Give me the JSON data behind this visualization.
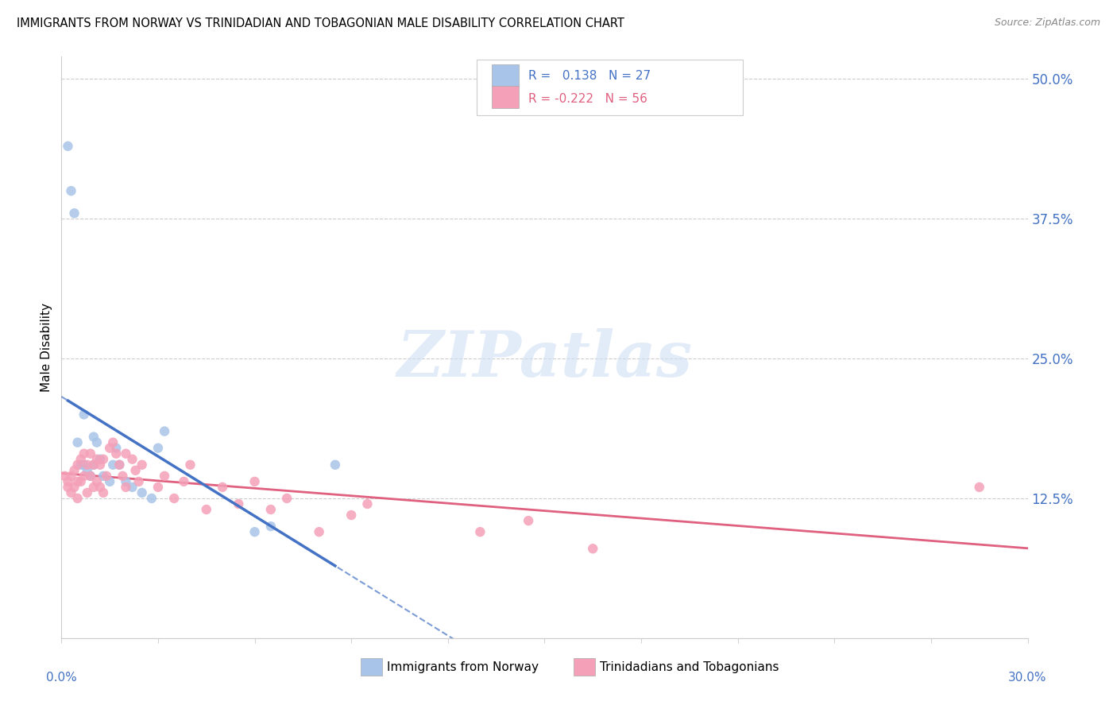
{
  "title": "IMMIGRANTS FROM NORWAY VS TRINIDADIAN AND TOBAGONIAN MALE DISABILITY CORRELATION CHART",
  "source": "Source: ZipAtlas.com",
  "ylabel": "Male Disability",
  "xlim": [
    0.0,
    0.3
  ],
  "ylim": [
    0.0,
    0.52
  ],
  "norway_color": "#a8c4e8",
  "norway_line_color": "#4472c4",
  "trinidad_color": "#f4a0b8",
  "trinidad_line_color": "#e06080",
  "norway_R": 0.138,
  "norway_N": 27,
  "trinidad_R": -0.222,
  "trinidad_N": 56,
  "watermark_text": "ZIPatlas",
  "right_yticks": [
    0.0,
    0.125,
    0.25,
    0.375,
    0.5
  ],
  "right_yticklabels": [
    "",
    "12.5%",
    "25.0%",
    "37.5%",
    "50.0%"
  ],
  "norway_x": [
    0.002,
    0.003,
    0.004,
    0.005,
    0.006,
    0.007,
    0.007,
    0.008,
    0.009,
    0.01,
    0.01,
    0.011,
    0.012,
    0.013,
    0.015,
    0.016,
    0.017,
    0.018,
    0.02,
    0.022,
    0.025,
    0.028,
    0.03,
    0.032,
    0.06,
    0.065,
    0.085
  ],
  "norway_y": [
    0.44,
    0.4,
    0.38,
    0.175,
    0.155,
    0.2,
    0.155,
    0.15,
    0.145,
    0.18,
    0.155,
    0.175,
    0.16,
    0.145,
    0.14,
    0.155,
    0.17,
    0.155,
    0.14,
    0.135,
    0.13,
    0.125,
    0.17,
    0.185,
    0.095,
    0.1,
    0.155
  ],
  "trinidad_x": [
    0.001,
    0.002,
    0.002,
    0.003,
    0.003,
    0.004,
    0.004,
    0.005,
    0.005,
    0.005,
    0.006,
    0.006,
    0.007,
    0.007,
    0.008,
    0.008,
    0.009,
    0.009,
    0.01,
    0.01,
    0.011,
    0.011,
    0.012,
    0.012,
    0.013,
    0.013,
    0.014,
    0.015,
    0.016,
    0.017,
    0.018,
    0.019,
    0.02,
    0.02,
    0.022,
    0.023,
    0.024,
    0.025,
    0.03,
    0.032,
    0.035,
    0.038,
    0.04,
    0.045,
    0.05,
    0.055,
    0.06,
    0.065,
    0.07,
    0.08,
    0.09,
    0.095,
    0.13,
    0.145,
    0.165,
    0.285
  ],
  "trinidad_y": [
    0.145,
    0.14,
    0.135,
    0.145,
    0.13,
    0.15,
    0.135,
    0.155,
    0.14,
    0.125,
    0.16,
    0.14,
    0.165,
    0.145,
    0.155,
    0.13,
    0.165,
    0.145,
    0.155,
    0.135,
    0.16,
    0.14,
    0.155,
    0.135,
    0.16,
    0.13,
    0.145,
    0.17,
    0.175,
    0.165,
    0.155,
    0.145,
    0.165,
    0.135,
    0.16,
    0.15,
    0.14,
    0.155,
    0.135,
    0.145,
    0.125,
    0.14,
    0.155,
    0.115,
    0.135,
    0.12,
    0.14,
    0.115,
    0.125,
    0.095,
    0.11,
    0.12,
    0.095,
    0.105,
    0.08,
    0.135
  ]
}
